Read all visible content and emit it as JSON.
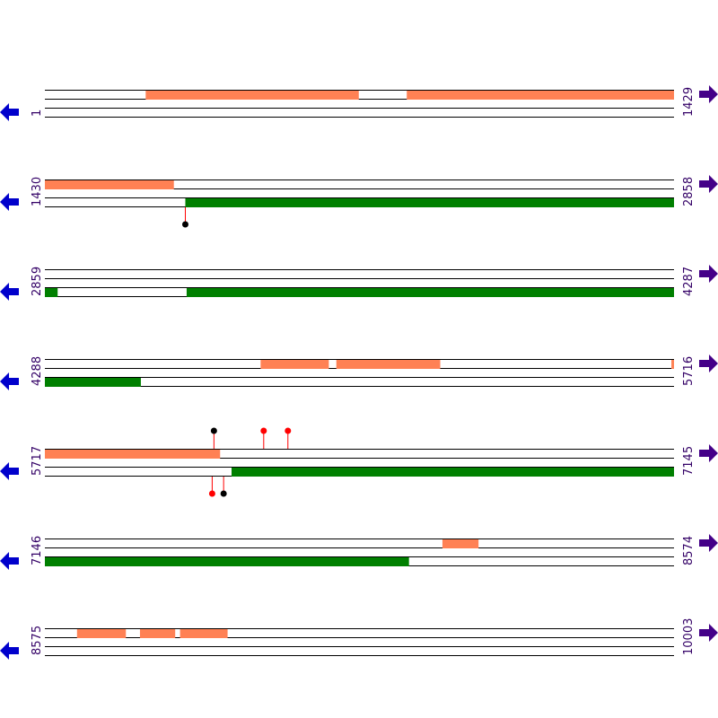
{
  "colors": {
    "orange": "#ff8154",
    "green": "#008000",
    "line": "#000000",
    "left_arrow": "#0000cc",
    "right_arrow": "#440088",
    "label": "#330066",
    "stem": "#ff0000",
    "marker_red": "#ff0000",
    "marker_black": "#000000"
  },
  "icons": {
    "left": "arrow-left-icon",
    "right": "arrow-right-icon"
  },
  "row_start_base": 1,
  "row_span_bases": 1429,
  "rows": [
    {
      "start": "1",
      "end": "1429",
      "top_blocks": [
        {
          "from": 230,
          "to": 713,
          "color": "orange"
        },
        {
          "from": 823,
          "to": 1429,
          "color": "orange"
        }
      ],
      "bottom_blocks": [],
      "markers": []
    },
    {
      "start": "1430",
      "end": "2858",
      "top_blocks": [
        {
          "from": 1430,
          "to": 1722,
          "color": "orange"
        }
      ],
      "bottom_blocks": [
        {
          "from": 1749,
          "to": 2858,
          "color": "green"
        }
      ],
      "markers": [
        {
          "pos": 1749,
          "strand": "bottom",
          "color": "marker_black"
        }
      ]
    },
    {
      "start": "2859",
      "end": "4287",
      "top_blocks": [],
      "bottom_blocks": [
        {
          "from": 2859,
          "to": 2887,
          "color": "green"
        },
        {
          "from": 3181,
          "to": 4287,
          "color": "green"
        }
      ],
      "markers": []
    },
    {
      "start": "4288",
      "end": "5716",
      "top_blocks": [
        {
          "from": 4778,
          "to": 4932,
          "color": "orange"
        },
        {
          "from": 4950,
          "to": 5185,
          "color": "orange"
        },
        {
          "from": 5711,
          "to": 5716,
          "color": "orange"
        }
      ],
      "bottom_blocks": [
        {
          "from": 4288,
          "to": 4505,
          "color": "green"
        }
      ],
      "markers": []
    },
    {
      "start": "5717",
      "end": "7145",
      "top_blocks": [
        {
          "from": 5717,
          "to": 6114,
          "color": "orange"
        }
      ],
      "bottom_blocks": [
        {
          "from": 6141,
          "to": 7145,
          "color": "green"
        }
      ],
      "markers": [
        {
          "pos": 6101,
          "strand": "top",
          "color": "marker_black"
        },
        {
          "pos": 6214,
          "strand": "top",
          "color": "marker_red"
        },
        {
          "pos": 6269,
          "strand": "top",
          "color": "marker_red"
        },
        {
          "pos": 6097,
          "strand": "bottom",
          "color": "marker_red"
        },
        {
          "pos": 6123,
          "strand": "bottom",
          "color": "marker_black"
        }
      ]
    },
    {
      "start": "7146",
      "end": "8574",
      "top_blocks": [
        {
          "from": 8049,
          "to": 8130,
          "color": "orange"
        }
      ],
      "bottom_blocks": [
        {
          "from": 7146,
          "to": 7972,
          "color": "green"
        }
      ],
      "markers": []
    },
    {
      "start": "8575",
      "end": "10003",
      "top_blocks": [
        {
          "from": 8648,
          "to": 8758,
          "color": "orange"
        },
        {
          "from": 8791,
          "to": 8870,
          "color": "orange"
        },
        {
          "from": 8882,
          "to": 8989,
          "color": "orange"
        }
      ],
      "bottom_blocks": [],
      "markers": []
    }
  ]
}
